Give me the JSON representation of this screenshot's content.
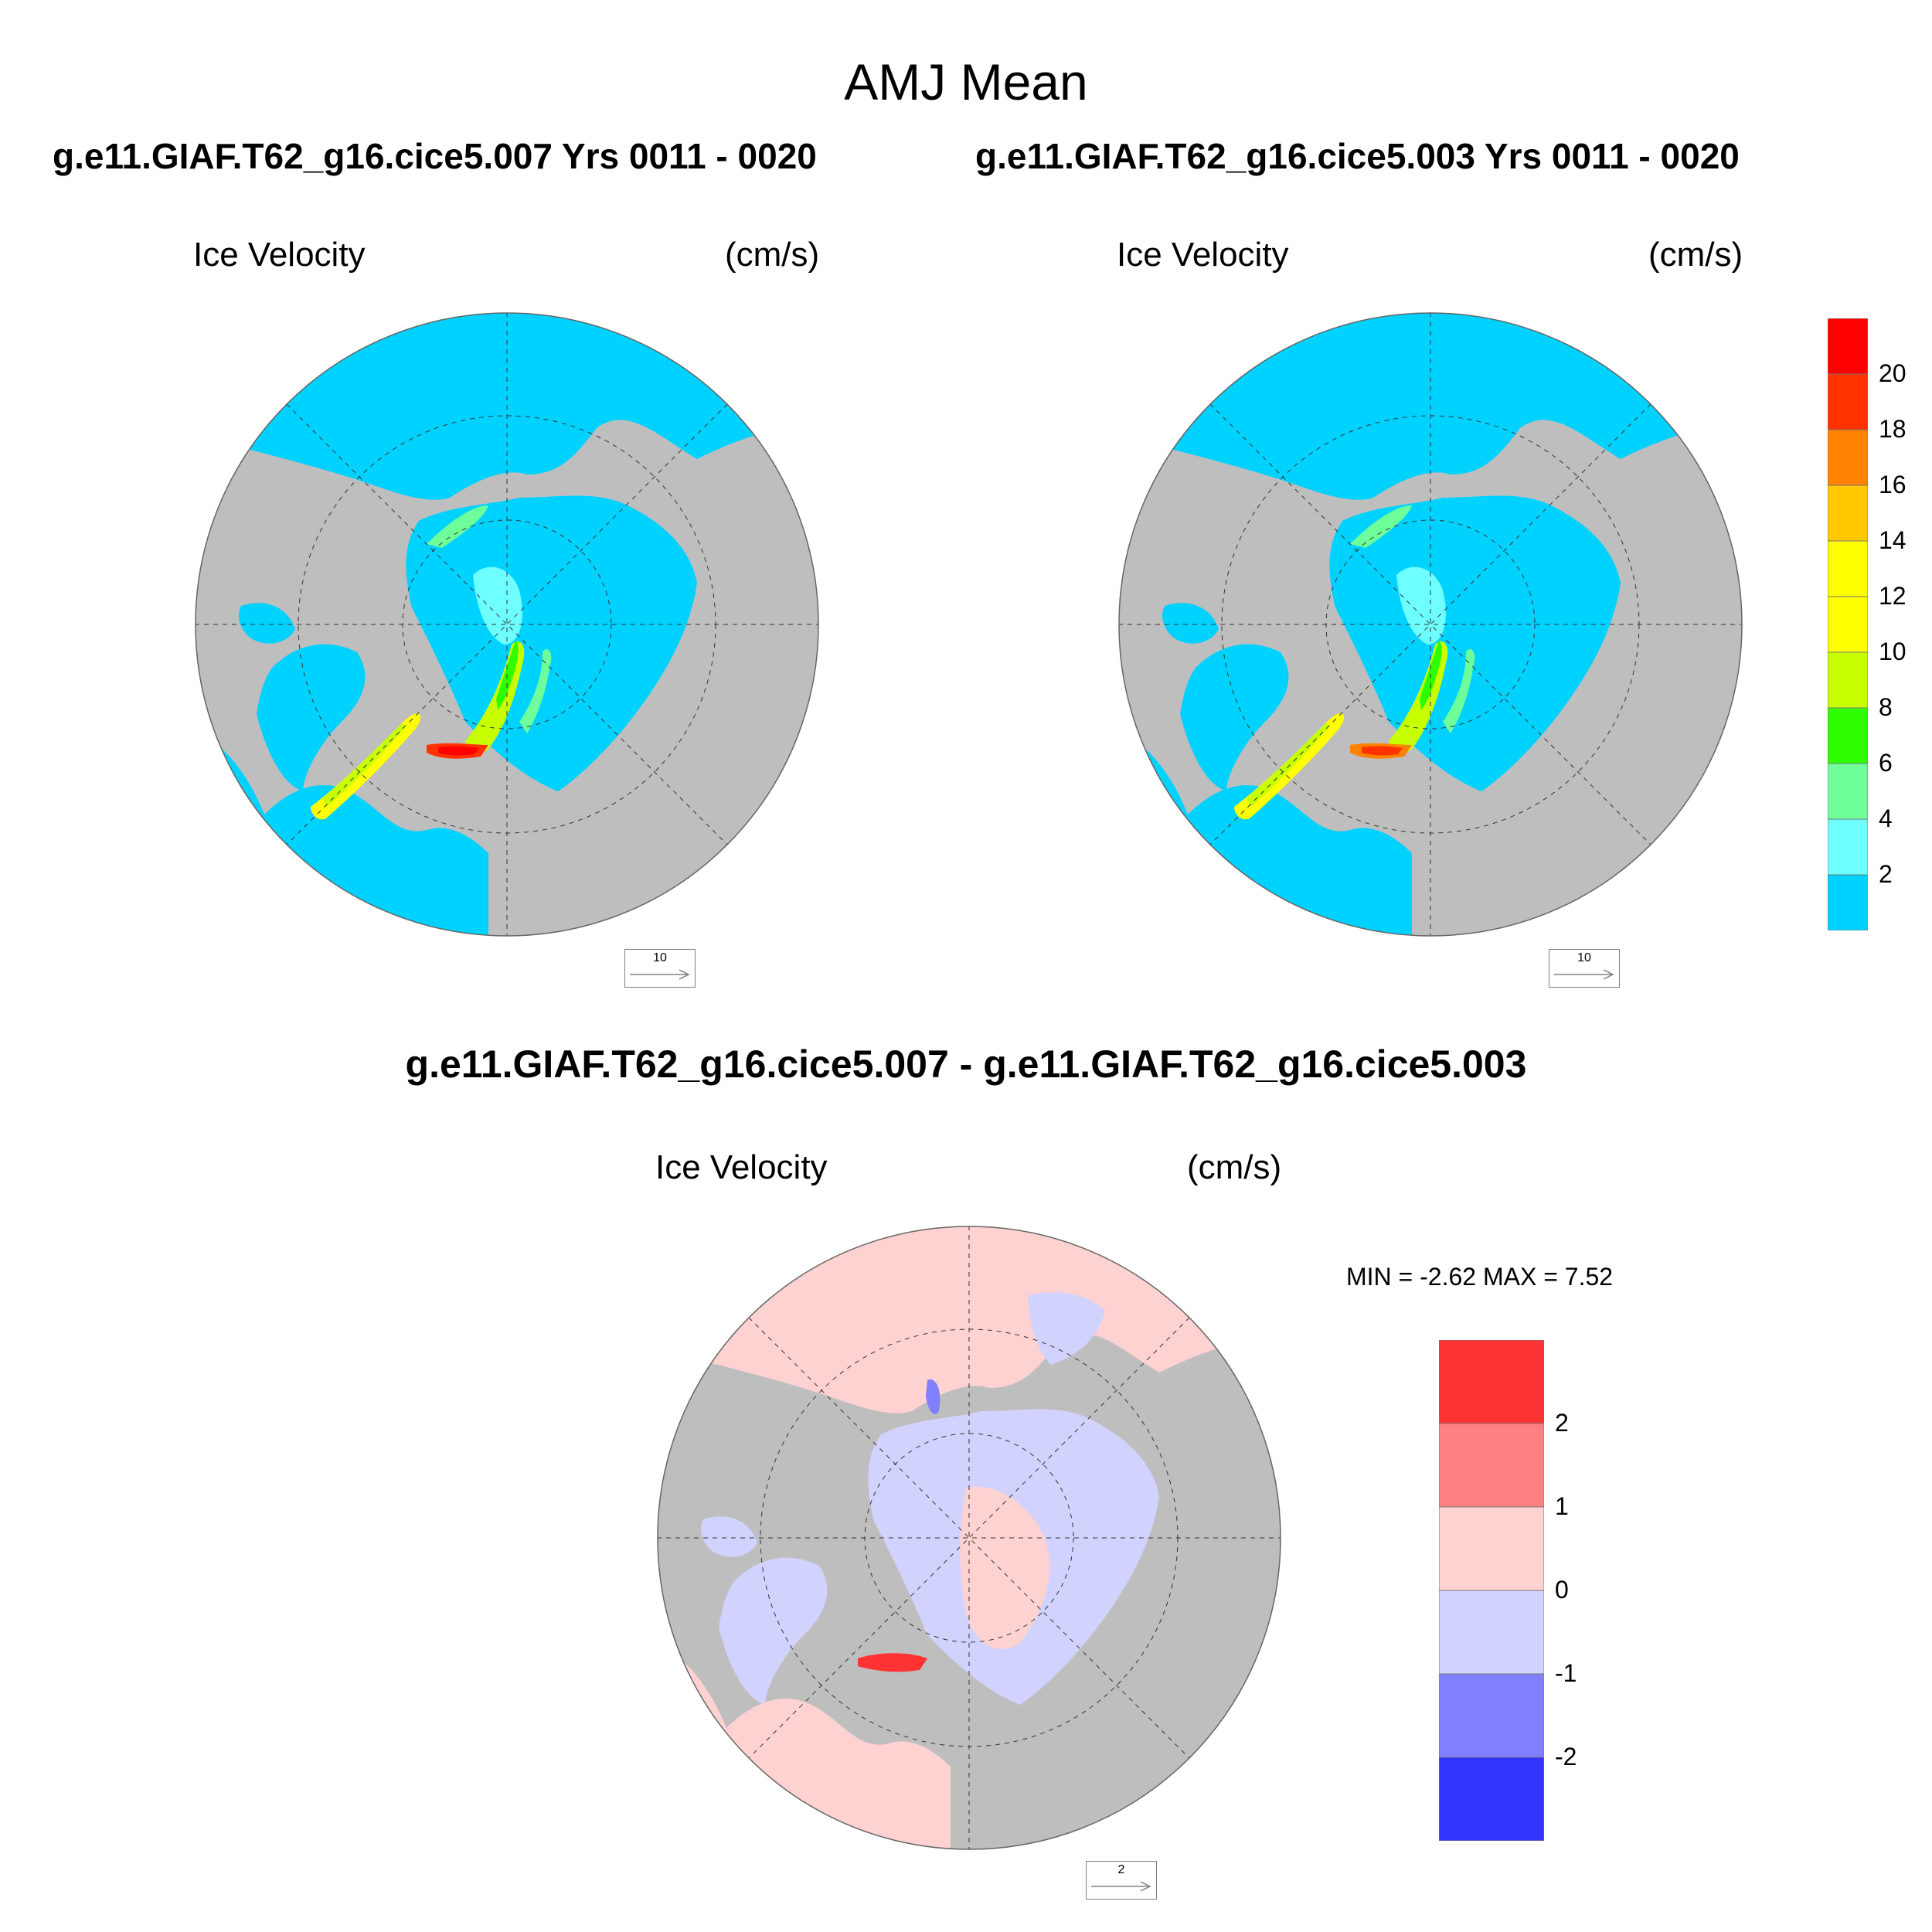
{
  "page": {
    "title": "AMJ Mean",
    "left_case_title": "g.e11.GIAF.T62_g16.cice5.007  Yrs 0011 - 0020",
    "right_case_title": "g.e11.GIAF.T62_g16.cice5.003  Yrs 0011 - 0020",
    "difference_title": "g.e11.GIAF.T62_g16.cice5.007 - g.e11.GIAF.T62_g16.cice5.003"
  },
  "panels": {
    "top_left": {
      "variable": "Ice Velocity",
      "units": "(cm/s)",
      "ref_vector": "10"
    },
    "top_right": {
      "variable": "Ice Velocity",
      "units": "(cm/s)",
      "ref_vector": "10"
    },
    "bottom": {
      "variable": "Ice Velocity",
      "units": "(cm/s)",
      "ref_vector": "2",
      "min_max_text": "MIN =  -2.62 MAX =   7.52"
    }
  },
  "colors": {
    "land": "#bebebe",
    "ocean_open": "#00d2ff",
    "diff_positive_small": "#ffd2d2",
    "diff_negative_small": "#d2d2ff"
  },
  "chart_data": [
    {
      "type": "heatmap",
      "projection": "north polar stereographic",
      "variable": "Ice Velocity",
      "units": "(cm/s)",
      "colorbar": {
        "tick_labels": [
          "2",
          "4",
          "6",
          "8",
          "10",
          "12",
          "14",
          "16",
          "18",
          "20"
        ],
        "bins": [
          {
            "range": "<2",
            "color": "#00d2ff"
          },
          {
            "range": "2-4",
            "color": "#6effff"
          },
          {
            "range": "4-6",
            "color": "#6eff9a"
          },
          {
            "range": "6-8",
            "color": "#2dff00"
          },
          {
            "range": "8-10",
            "color": "#c8ff00"
          },
          {
            "range": "10-12",
            "color": "#ffff00"
          },
          {
            "range": "12-14",
            "color": "#ffff00"
          },
          {
            "range": "14-16",
            "color": "#ffc800"
          },
          {
            "range": "16-18",
            "color": "#ff8200"
          },
          {
            "range": "18-20",
            "color": "#ff3200"
          },
          {
            "range": ">20",
            "color": "#ff0000"
          }
        ]
      },
      "reference_vector": 10
    },
    {
      "type": "heatmap",
      "projection": "north polar stereographic",
      "variable": "Ice Velocity",
      "units": "(cm/s)",
      "colorbar": "shared with left panel",
      "reference_vector": 10
    },
    {
      "type": "heatmap",
      "projection": "north polar stereographic",
      "variable": "Ice Velocity",
      "units": "(cm/s)",
      "min": -2.62,
      "max": 7.52,
      "colorbar": {
        "tick_labels": [
          "2",
          "1",
          "0",
          "-1",
          "-2"
        ],
        "bins": [
          {
            "range": ">2",
            "color": "#ff3333"
          },
          {
            "range": "1-2",
            "color": "#ff8080"
          },
          {
            "range": "0-1",
            "color": "#ffd2d2"
          },
          {
            "range": "-1-0",
            "color": "#d2d2ff"
          },
          {
            "range": "-2--1",
            "color": "#8080ff"
          },
          {
            "range": "<-2",
            "color": "#3333ff"
          }
        ]
      },
      "reference_vector": 2
    }
  ]
}
